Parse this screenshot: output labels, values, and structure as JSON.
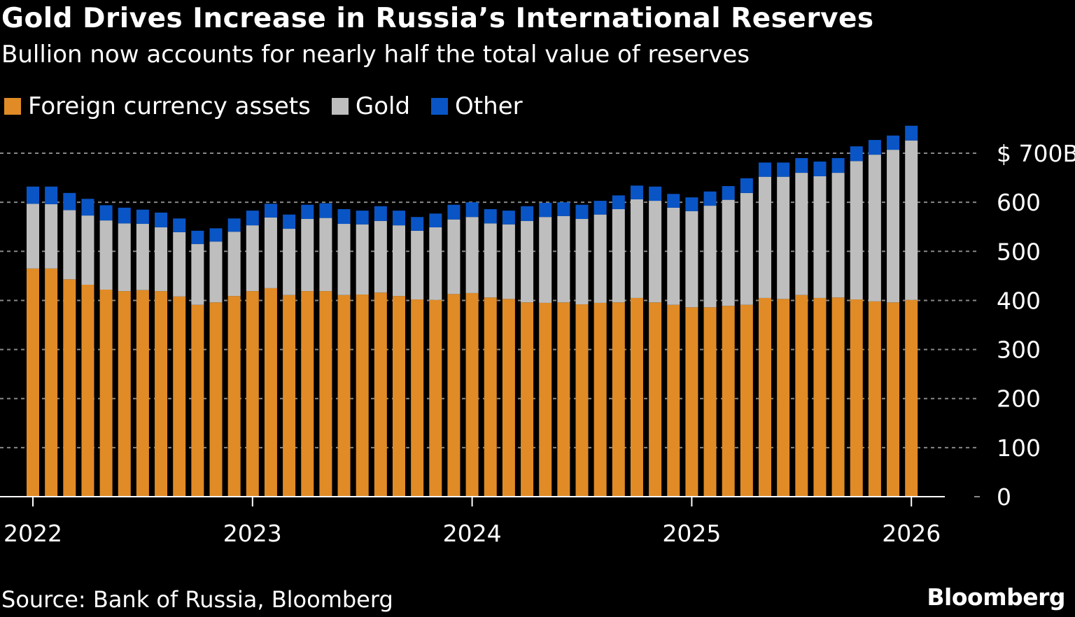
{
  "chart_data": {
    "type": "bar",
    "stacked": true,
    "title": "Gold Drives Increase in Russia’s International Reserves",
    "subtitle": "Bullion now accounts for nearly half the total value of reserves",
    "xlabel": "",
    "ylabel": "",
    "ylim": [
      0,
      760
    ],
    "yticks": [
      0,
      100,
      200,
      300,
      400,
      500,
      600,
      700
    ],
    "ytick_labels": [
      "0",
      "100",
      "200",
      "300",
      "400",
      "500",
      "600",
      "$ 700B"
    ],
    "xtick_labels": [
      "2022",
      "2023",
      "2024",
      "2025",
      "2026"
    ],
    "xtick_bar_index": [
      0,
      12,
      24,
      36,
      48
    ],
    "grid": true,
    "legend_position": "top-left",
    "categories_note": "Monthly, Jan 2022 – Jan 2026",
    "series": [
      {
        "name": "Foreign currency assets",
        "color": "#E08B26",
        "values": [
          465,
          465,
          443,
          432,
          422,
          419,
          421,
          419,
          408,
          391,
          396,
          409,
          419,
          425,
          411,
          419,
          419,
          411,
          412,
          416,
          409,
          402,
          401,
          413,
          415,
          406,
          403,
          396,
          395,
          396,
          392,
          395,
          396,
          405,
          396,
          391,
          386,
          386,
          389,
          391,
          405,
          403,
          411,
          405,
          406,
          402,
          398,
          396,
          401
        ]
      },
      {
        "name": "Gold",
        "color": "#BEBEBE",
        "values": [
          132,
          131,
          141,
          141,
          141,
          138,
          135,
          130,
          131,
          124,
          124,
          131,
          134,
          144,
          135,
          147,
          149,
          145,
          143,
          146,
          144,
          140,
          148,
          152,
          155,
          151,
          152,
          166,
          175,
          176,
          174,
          180,
          190,
          201,
          207,
          198,
          196,
          207,
          216,
          228,
          247,
          249,
          249,
          248,
          254,
          282,
          299,
          311,
          325
        ]
      },
      {
        "name": "Other",
        "color": "#0A55C6",
        "values": [
          35,
          36,
          35,
          34,
          31,
          32,
          29,
          30,
          28,
          27,
          27,
          27,
          30,
          28,
          29,
          29,
          30,
          30,
          28,
          30,
          30,
          28,
          28,
          30,
          30,
          29,
          28,
          30,
          29,
          28,
          29,
          28,
          28,
          28,
          29,
          28,
          28,
          29,
          28,
          30,
          29,
          29,
          30,
          30,
          30,
          30,
          30,
          29,
          30
        ]
      }
    ],
    "source": "Source: Bank of Russia, Bloomberg",
    "logo": "Bloomberg"
  }
}
